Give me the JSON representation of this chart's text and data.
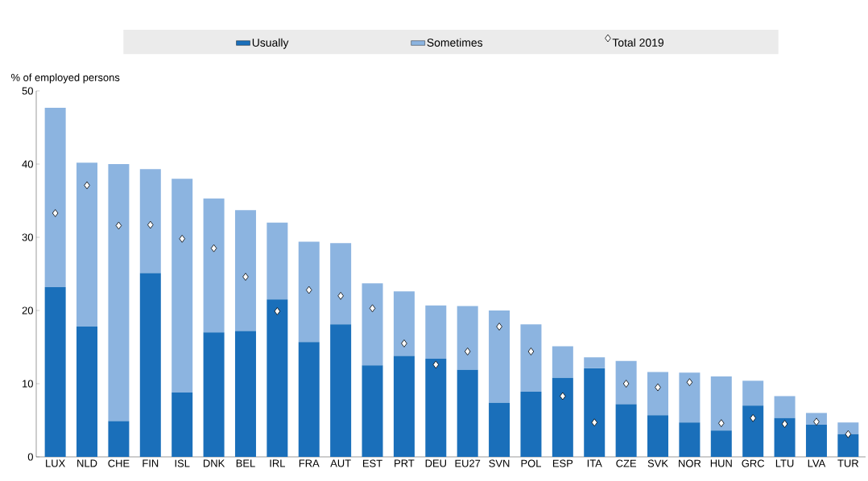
{
  "chart_data": {
    "type": "bar",
    "stacked": true,
    "ylabel": "% of employed persons",
    "legend": "top",
    "ylim": [
      0,
      50
    ],
    "yticks": [
      0,
      10,
      20,
      30,
      40,
      50
    ],
    "categories": [
      "LUX",
      "NLD",
      "CHE",
      "FIN",
      "ISL",
      "DNK",
      "BEL",
      "IRL",
      "FRA",
      "AUT",
      "EST",
      "PRT",
      "DEU",
      "EU27",
      "SVN",
      "POL",
      "ESP",
      "ITA",
      "CZE",
      "SVK",
      "NOR",
      "HUN",
      "GRC",
      "LTU",
      "LVA",
      "TUR"
    ],
    "series": [
      {
        "name": "Usually",
        "color": "#1a6fba",
        "values": [
          23.2,
          17.8,
          4.9,
          25.1,
          8.8,
          17.0,
          17.2,
          21.5,
          15.7,
          18.1,
          12.5,
          13.8,
          13.4,
          11.9,
          7.4,
          8.9,
          10.8,
          12.1,
          7.2,
          5.7,
          4.7,
          3.6,
          7.0,
          5.3,
          4.4,
          3.1
        ]
      },
      {
        "name": "Sometimes",
        "color": "#8cb4e0",
        "values": [
          24.5,
          22.4,
          35.1,
          14.2,
          29.2,
          18.3,
          16.5,
          10.5,
          13.7,
          11.1,
          11.2,
          8.8,
          7.3,
          8.7,
          12.6,
          9.2,
          4.3,
          1.5,
          5.9,
          5.9,
          6.8,
          7.4,
          3.4,
          3.0,
          1.6,
          1.6
        ]
      },
      {
        "name": "Total 2019",
        "type": "scatter",
        "marker": "diamond",
        "color": "#ffffff",
        "x": [
          "LUX",
          "NLD",
          "CHE",
          "FIN",
          "ISL",
          "DNK",
          "BEL",
          "IRL",
          "FRA",
          "AUT",
          "EST",
          "PRT",
          "DEU",
          "EU27",
          "SVN",
          "POL",
          "ESP",
          "ITA",
          "CZE",
          "SVK",
          "NOR",
          "HUN",
          "GRC",
          "LTU",
          "LVA",
          "TUR"
        ],
        "values": [
          33.3,
          37.1,
          31.6,
          31.7,
          29.8,
          28.5,
          24.6,
          19.9,
          22.8,
          22.0,
          20.3,
          15.5,
          12.6,
          14.4,
          17.8,
          14.4,
          8.3,
          4.7,
          10.0,
          9.5,
          10.2,
          4.6,
          5.3,
          4.5,
          4.8,
          3.1
        ]
      }
    ]
  }
}
